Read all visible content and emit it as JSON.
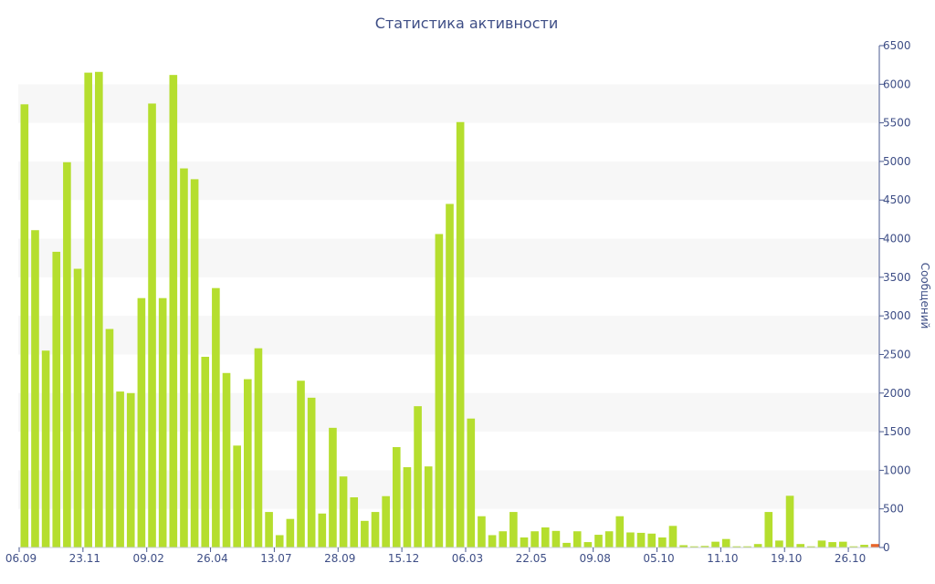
{
  "chart_data": {
    "type": "bar",
    "title": "Статистика активности",
    "xlabel": "",
    "ylabel": "Сообщений",
    "ylim": [
      0,
      6500
    ],
    "yticks": [
      0,
      500,
      1000,
      1500,
      2000,
      2500,
      3000,
      3500,
      4000,
      4500,
      5000,
      5500,
      6000,
      6500
    ],
    "x_tick_labels": [
      {
        "index": 0,
        "label": "06.09"
      },
      {
        "index": 6,
        "label": "23.11"
      },
      {
        "index": 12,
        "label": "09.02"
      },
      {
        "index": 18,
        "label": "26.04"
      },
      {
        "index": 24,
        "label": "13.07"
      },
      {
        "index": 30,
        "label": "28.09"
      },
      {
        "index": 36,
        "label": "15.12"
      },
      {
        "index": 42,
        "label": "06.03"
      },
      {
        "index": 48,
        "label": "22.05"
      },
      {
        "index": 54,
        "label": "09.08"
      },
      {
        "index": 60,
        "label": "05.10"
      },
      {
        "index": 66,
        "label": "11.10"
      },
      {
        "index": 72,
        "label": "19.10"
      },
      {
        "index": 78,
        "label": "26.10"
      }
    ],
    "grid": "alternating horizontal bands",
    "bar_color": "#b5de2e",
    "highlight_color": "#e8652a",
    "values": [
      5740,
      4110,
      2550,
      3830,
      4990,
      3610,
      6150,
      6160,
      2830,
      2020,
      2000,
      3230,
      5750,
      3230,
      6120,
      4910,
      4770,
      2470,
      3360,
      2260,
      1320,
      2180,
      2580,
      460,
      160,
      370,
      2160,
      1940,
      440,
      1550,
      920,
      650,
      345,
      460,
      665,
      1300,
      1040,
      1830,
      1050,
      4060,
      4450,
      5510,
      1670,
      405,
      160,
      210,
      460,
      130,
      210,
      260,
      215,
      60,
      210,
      70,
      165,
      210,
      405,
      195,
      190,
      180,
      130,
      280,
      30,
      15,
      20,
      75,
      110,
      15,
      15,
      45,
      460,
      90,
      670,
      45,
      15,
      90,
      70,
      75,
      15,
      35,
      40
    ],
    "highlight_values": [
      0,
      0,
      0,
      0,
      0,
      0,
      0,
      0,
      0,
      0,
      0,
      0,
      0,
      0,
      0,
      0,
      0,
      0,
      0,
      0,
      0,
      0,
      0,
      0,
      0,
      0,
      0,
      0,
      0,
      0,
      0,
      0,
      0,
      0,
      0,
      0,
      0,
      0,
      0,
      0,
      0,
      0,
      0,
      0,
      0,
      0,
      0,
      0,
      0,
      0,
      0,
      0,
      0,
      0,
      0,
      0,
      0,
      0,
      0,
      0,
      0,
      0,
      0,
      0,
      0,
      0,
      0,
      0,
      0,
      0,
      0,
      0,
      0,
      0,
      0,
      0,
      0,
      0,
      0,
      0,
      45
    ]
  }
}
